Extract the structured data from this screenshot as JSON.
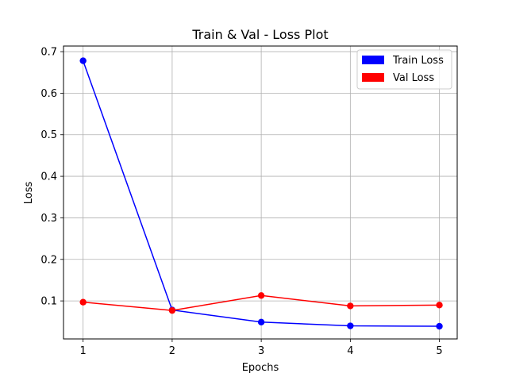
{
  "chart_data": {
    "type": "line",
    "title": "Train & Val - Loss Plot",
    "xlabel": "Epochs",
    "ylabel": "Loss",
    "x": [
      1,
      2,
      3,
      4,
      5
    ],
    "xlim": [
      0.78,
      5.2
    ],
    "ylim": [
      0.0085,
      0.7135
    ],
    "xticks": [
      1,
      2,
      3,
      4,
      5
    ],
    "yticks": [
      0.1,
      0.2,
      0.3,
      0.4,
      0.5,
      0.6,
      0.7
    ],
    "ytick_labels": [
      "0.1",
      "0.2",
      "0.3",
      "0.4",
      "0.5",
      "0.6",
      "0.7"
    ],
    "grid": true,
    "legend_position": "top-right",
    "series": [
      {
        "name": "Train Loss",
        "color": "#0000ff",
        "values": [
          0.678,
          0.078,
          0.049,
          0.04,
          0.039
        ]
      },
      {
        "name": "Val Loss",
        "color": "#ff0000",
        "values": [
          0.097,
          0.077,
          0.113,
          0.088,
          0.09
        ]
      }
    ]
  }
}
